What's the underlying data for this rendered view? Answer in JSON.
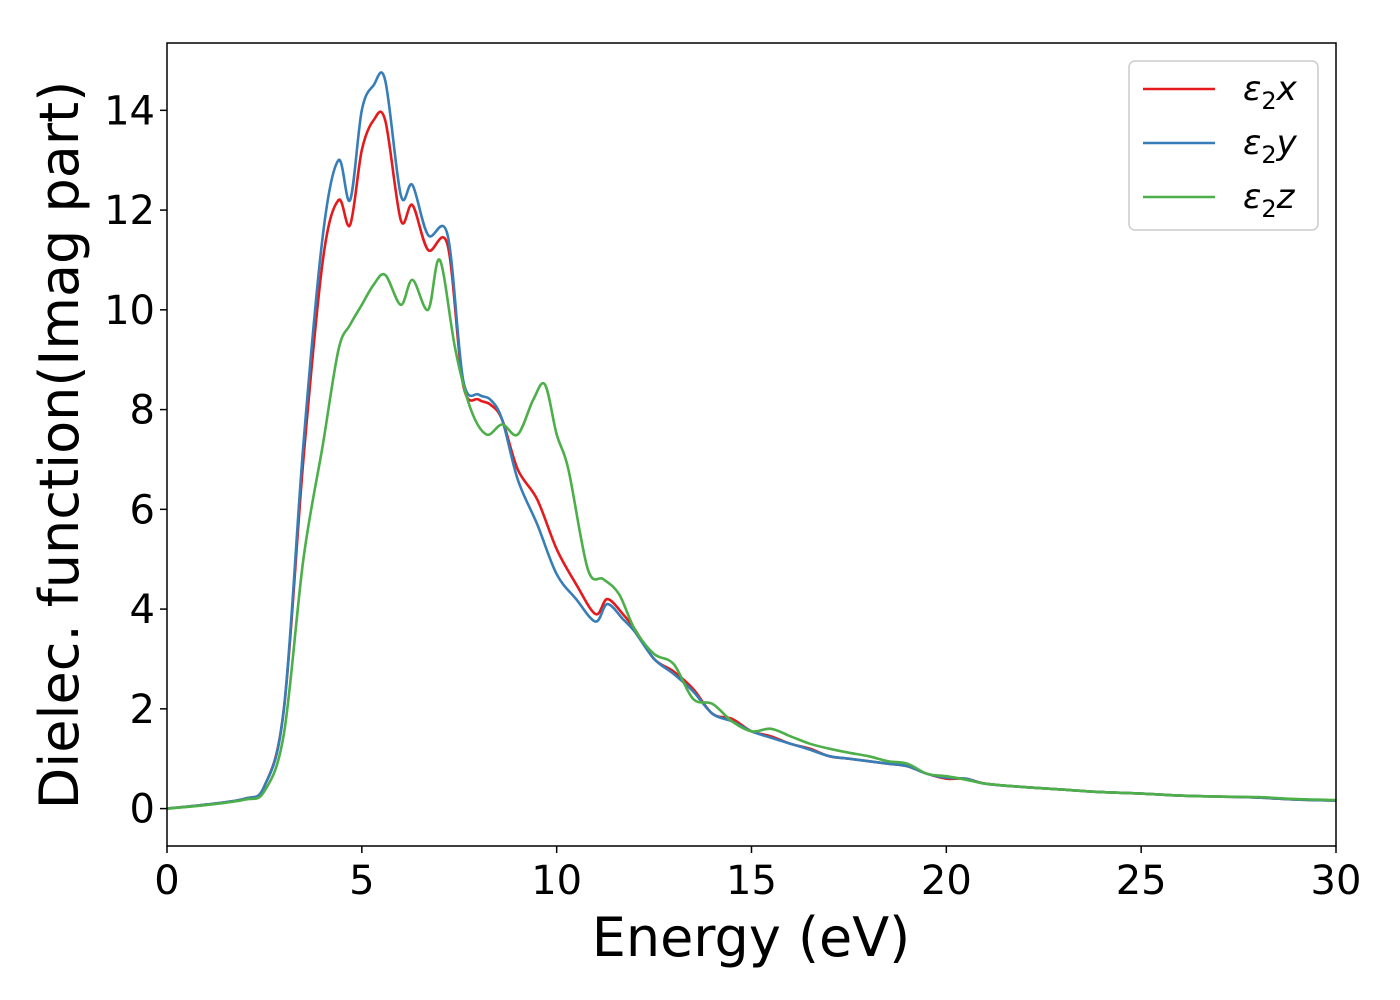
{
  "chart_data": {
    "type": "line",
    "title": "",
    "xlabel": "Energy (eV)",
    "ylabel": "Dielec. function(Imag part)",
    "xlim": [
      0,
      30
    ],
    "ylim": [
      -0.75,
      15.35
    ],
    "xticks": [
      0,
      5,
      10,
      15,
      20,
      25,
      30
    ],
    "yticks": [
      0,
      2,
      4,
      6,
      8,
      10,
      12,
      14
    ],
    "grid": false,
    "legend_position": "top-right",
    "series": [
      {
        "name": "ε2x",
        "legend": {
          "base": "ε",
          "sub": "2",
          "suffix": "x"
        },
        "color": "#e41a1c",
        "x": [
          0,
          1,
          2,
          2.5,
          3,
          3.5,
          4,
          4.4,
          4.7,
          5,
          5.3,
          5.6,
          6,
          6.3,
          6.7,
          7.2,
          7.6,
          8,
          8.3,
          8.6,
          9,
          9.5,
          10,
          10.5,
          11,
          11.3,
          11.7,
          12,
          12.5,
          13,
          13.5,
          14,
          14.5,
          15,
          15.5,
          16,
          16.5,
          17,
          17.5,
          18,
          18.5,
          19,
          19.5,
          20,
          20.5,
          21,
          22,
          23,
          24,
          25,
          26,
          27,
          28,
          29,
          30
        ],
        "y": [
          0,
          0.08,
          0.2,
          0.45,
          2,
          7,
          11,
          12.2,
          11.7,
          13.2,
          13.8,
          13.8,
          11.8,
          12.1,
          11.2,
          11.3,
          8.5,
          8.2,
          8.1,
          7.8,
          6.8,
          6.2,
          5.2,
          4.5,
          3.9,
          4.2,
          3.9,
          3.6,
          3.0,
          2.75,
          2.4,
          1.9,
          1.8,
          1.55,
          1.45,
          1.3,
          1.2,
          1.05,
          1.0,
          0.95,
          0.9,
          0.85,
          0.7,
          0.6,
          0.6,
          0.5,
          0.43,
          0.38,
          0.33,
          0.3,
          0.26,
          0.24,
          0.22,
          0.18,
          0.16
        ]
      },
      {
        "name": "ε2y",
        "legend": {
          "base": "ε",
          "sub": "2",
          "suffix": "y"
        },
        "color": "#377eb8",
        "x": [
          0,
          1,
          2,
          2.5,
          3,
          3.5,
          4,
          4.4,
          4.7,
          5,
          5.3,
          5.6,
          6,
          6.3,
          6.7,
          7.2,
          7.6,
          8,
          8.3,
          8.6,
          9,
          9.5,
          10,
          10.5,
          11,
          11.3,
          11.7,
          12,
          12.5,
          13,
          13.5,
          14,
          14.5,
          15,
          15.5,
          16,
          16.5,
          17,
          17.5,
          18,
          18.5,
          19,
          19.5,
          20,
          20.5,
          21,
          22,
          23,
          24,
          25,
          26,
          27,
          28,
          29,
          30
        ],
        "y": [
          0,
          0.08,
          0.2,
          0.45,
          2,
          7.3,
          11.5,
          13.0,
          12.2,
          14.0,
          14.5,
          14.6,
          12.3,
          12.5,
          11.5,
          11.5,
          8.6,
          8.3,
          8.2,
          7.8,
          6.6,
          5.7,
          4.7,
          4.2,
          3.75,
          4.1,
          3.8,
          3.55,
          3.0,
          2.7,
          2.35,
          1.9,
          1.75,
          1.55,
          1.42,
          1.3,
          1.18,
          1.05,
          1.0,
          0.95,
          0.9,
          0.85,
          0.7,
          0.62,
          0.6,
          0.5,
          0.43,
          0.38,
          0.33,
          0.3,
          0.26,
          0.24,
          0.22,
          0.18,
          0.16
        ]
      },
      {
        "name": "ε2z",
        "legend": {
          "base": "ε",
          "sub": "2",
          "suffix": "z"
        },
        "color": "#4daf4a",
        "x": [
          0,
          1,
          2,
          2.5,
          3,
          3.5,
          4,
          4.4,
          4.7,
          5,
          5.3,
          5.6,
          6,
          6.3,
          6.7,
          7.0,
          7.4,
          7.8,
          8.2,
          8.6,
          9,
          9.4,
          9.7,
          10,
          10.3,
          10.8,
          11.2,
          11.6,
          12,
          12.5,
          13,
          13.5,
          14,
          14.5,
          15,
          15.5,
          16,
          16.5,
          17,
          17.5,
          18,
          18.5,
          19,
          19.5,
          20,
          20.5,
          21,
          22,
          23,
          24,
          25,
          26,
          27,
          28,
          29,
          30
        ],
        "y": [
          0,
          0.07,
          0.18,
          0.35,
          1.5,
          5,
          7.3,
          9.2,
          9.7,
          10.1,
          10.5,
          10.7,
          10.1,
          10.6,
          10.0,
          11.0,
          9.2,
          8.0,
          7.5,
          7.7,
          7.5,
          8.2,
          8.5,
          7.5,
          6.8,
          4.8,
          4.6,
          4.3,
          3.6,
          3.1,
          2.9,
          2.2,
          2.1,
          1.75,
          1.55,
          1.6,
          1.45,
          1.3,
          1.2,
          1.12,
          1.05,
          0.95,
          0.9,
          0.7,
          0.65,
          0.58,
          0.5,
          0.43,
          0.38,
          0.33,
          0.3,
          0.26,
          0.24,
          0.23,
          0.19,
          0.17
        ]
      }
    ]
  }
}
